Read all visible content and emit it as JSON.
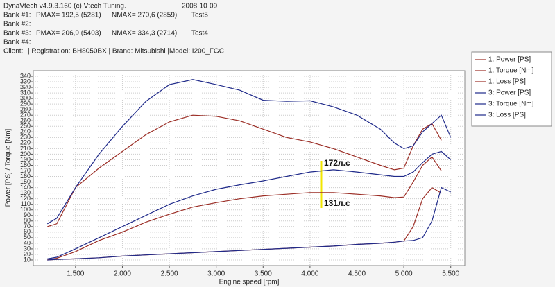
{
  "header": {
    "software": "DynaVtech v4.9.3.160 (c) Vtech Tuning.",
    "date": "2008-10-09",
    "banks": [
      {
        "label": "Bank #1:",
        "pmax": "PMAX= 192,5 (5281)",
        "nmax": "NMAX= 270,6 (2859)",
        "test": "Test5"
      },
      {
        "label": "Bank #2:"
      },
      {
        "label": "Bank #3:",
        "pmax": "PMAX= 206,9 (5403)",
        "nmax": "NMAX= 334,3 (2714)",
        "test": "Test4"
      },
      {
        "label": "Bank #4:"
      }
    ],
    "client": "Client:",
    "registration": "| Registration:  BH8050BX | Brand: Mitsubishi |Model:  I200_FGC"
  },
  "chart_data": {
    "type": "line",
    "y_label": "Power [PS] / Torque [Nm]",
    "x_label": "Engine speed [rpm]",
    "x": [
      1200,
      1300,
      1500,
      1750,
      2000,
      2250,
      2500,
      2750,
      3000,
      3250,
      3500,
      3750,
      4000,
      4250,
      4500,
      4750,
      4900,
      5000,
      5100,
      5200,
      5300,
      5400,
      5500
    ],
    "series": [
      {
        "name": "1: Power [PS]",
        "color": "#9b2d25",
        "values": [
          10,
          13,
          25,
          45,
          60,
          78,
          92,
          105,
          113,
          120,
          125,
          128,
          131,
          131,
          128,
          125,
          122,
          123,
          150,
          180,
          195,
          170,
          null
        ]
      },
      {
        "name": "1: Torque [Nm]",
        "color": "#9b2d25",
        "values": [
          70,
          75,
          140,
          175,
          205,
          235,
          258,
          270,
          268,
          260,
          245,
          230,
          222,
          210,
          195,
          180,
          172,
          175,
          215,
          245,
          255,
          225,
          null
        ]
      },
      {
        "name": "1: Loss [PS]",
        "color": "#9b2d25",
        "values": [
          10,
          11,
          12,
          14,
          17,
          19,
          21,
          23,
          25,
          27,
          29,
          31,
          33,
          35,
          38,
          40,
          42,
          44,
          70,
          120,
          140,
          130,
          null
        ]
      },
      {
        "name": "3: Power [PS]",
        "color": "#1f2a8a",
        "values": [
          12,
          15,
          30,
          50,
          70,
          90,
          110,
          125,
          137,
          145,
          152,
          160,
          168,
          172,
          168,
          163,
          160,
          160,
          168,
          185,
          200,
          205,
          190
        ]
      },
      {
        "name": "3: Torque [Nm]",
        "color": "#1f2a8a",
        "values": [
          75,
          85,
          140,
          200,
          250,
          295,
          325,
          334,
          325,
          315,
          297,
          295,
          296,
          285,
          270,
          245,
          220,
          210,
          215,
          240,
          255,
          270,
          230
        ]
      },
      {
        "name": "3: Loss [PS]",
        "color": "#1f2a8a",
        "values": [
          10,
          11,
          12,
          14,
          17,
          19,
          21,
          23,
          25,
          27,
          29,
          31,
          33,
          35,
          38,
          40,
          42,
          44,
          45,
          50,
          80,
          140,
          132
        ]
      }
    ],
    "xlim": [
      1050,
      5650
    ],
    "xticks": [
      {
        "value": 1500,
        "label": "1.500"
      },
      {
        "value": 2000,
        "label": "2.000"
      },
      {
        "value": 2500,
        "label": "2.500"
      },
      {
        "value": 3000,
        "label": "3.000"
      },
      {
        "value": 3500,
        "label": "3.500"
      },
      {
        "value": 4000,
        "label": "4.000"
      },
      {
        "value": 4500,
        "label": "4.500"
      },
      {
        "value": 5000,
        "label": "5.000"
      },
      {
        "value": 5500,
        "label": "5.500"
      }
    ],
    "ylim": [
      0,
      350
    ],
    "yticks": [
      10,
      20,
      30,
      40,
      50,
      60,
      70,
      80,
      90,
      100,
      110,
      120,
      130,
      140,
      150,
      160,
      170,
      180,
      190,
      200,
      210,
      220,
      230,
      240,
      250,
      260,
      270,
      280,
      290,
      300,
      310,
      320,
      330,
      340
    ],
    "grid": true,
    "annotations": [
      "172л.с",
      "131л.с"
    ]
  }
}
